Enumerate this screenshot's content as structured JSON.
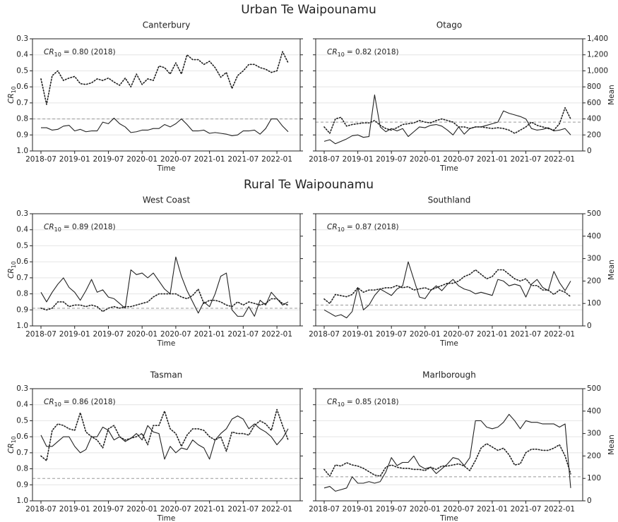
{
  "chart_data": {
    "type": "line",
    "x": [
      "2018-07",
      "2018-08",
      "2018-09",
      "2018-10",
      "2018-11",
      "2018-12",
      "2019-01",
      "2019-02",
      "2019-03",
      "2019-04",
      "2019-05",
      "2019-06",
      "2019-07",
      "2019-08",
      "2019-09",
      "2019-10",
      "2019-11",
      "2019-12",
      "2020-01",
      "2020-02",
      "2020-03",
      "2020-04",
      "2020-05",
      "2020-06",
      "2020-07",
      "2020-08",
      "2020-09",
      "2020-10",
      "2020-11",
      "2020-12",
      "2021-01",
      "2021-02",
      "2021-03",
      "2021-04",
      "2021-05",
      "2021-06",
      "2021-07",
      "2021-08",
      "2021-09",
      "2021-10",
      "2021-11",
      "2021-12",
      "2022-01",
      "2022-02",
      "2022-03"
    ],
    "xticks": [
      "2018-07",
      "2019-01",
      "2019-07",
      "2020-01",
      "2020-07",
      "2021-01",
      "2021-07",
      "2022-01"
    ],
    "xlabel": "Time",
    "ylabel": {
      "symbol": "CR",
      "subscript": "10"
    },
    "y2label": "Mean",
    "ylim": [
      1,
      0.3
    ],
    "yticks": [
      0.3,
      0.4,
      0.5,
      0.6,
      0.7,
      0.8,
      0.9,
      {
        "value": 1,
        "label": "1.0"
      }
    ],
    "grid": true,
    "rows": [
      {
        "title": "Urban Te Waipounamu",
        "y2lim": [
          0,
          1400
        ],
        "y2ticks": [
          0,
          200,
          400,
          600,
          800,
          {
            "value": 1000,
            "label": "1,000"
          },
          {
            "value": 1200,
            "label": "1,200"
          },
          {
            "value": 1400,
            "label": "1,400"
          }
        ],
        "panels": [
          {
            "title": "Canterbury",
            "reference": 0.8,
            "annotation": {
              "symbol": "CR",
              "subscript": "10",
              "text": "= 0.80 (2018)"
            },
            "series": [
              {
                "style": "solid",
                "axis": "y",
                "color": "#222222",
                "values": [
                  0.855,
                  0.855,
                  0.87,
                  0.865,
                  0.845,
                  0.84,
                  0.875,
                  0.865,
                  0.88,
                  0.875,
                  0.875,
                  0.82,
                  0.83,
                  0.795,
                  0.83,
                  0.85,
                  0.885,
                  0.88,
                  0.87,
                  0.87,
                  0.86,
                  0.86,
                  0.835,
                  0.85,
                  0.83,
                  0.8,
                  0.835,
                  0.875,
                  0.875,
                  0.87,
                  0.89,
                  0.885,
                  0.89,
                  0.895,
                  0.905,
                  0.9,
                  0.875,
                  0.875,
                  0.87,
                  0.895,
                  0.86,
                  0.8,
                  0.8,
                  0.845,
                  0.88
                ]
              },
              {
                "style": "dotted",
                "axis": "y2",
                "color": "#222222",
                "values": [
                  900,
                  580,
                  940,
                  1000,
                  880,
                  910,
                  930,
                  840,
                  830,
                  850,
                  900,
                  880,
                  910,
                  860,
                  820,
                  910,
                  800,
                  960,
                  830,
                  900,
                  880,
                  1060,
                  1040,
                  960,
                  1100,
                  960,
                  1200,
                  1140,
                  1140,
                  1080,
                  1120,
                  1040,
                  920,
                  980,
                  780,
                  940,
                  1000,
                  1080,
                  1080,
                  1040,
                  1020,
                  980,
                  1000,
                  1240,
                  1100
                ]
              }
            ]
          },
          {
            "title": "Otago",
            "reference": 0.82,
            "annotation": {
              "symbol": "CR",
              "subscript": "10",
              "text": "= 0.82 (2018)"
            },
            "series": [
              {
                "style": "solid",
                "axis": "y",
                "color": "#222222",
                "values": [
                  0.94,
                  0.93,
                  0.955,
                  0.94,
                  0.925,
                  0.905,
                  0.9,
                  0.915,
                  0.91,
                  0.65,
                  0.85,
                  0.88,
                  0.86,
                  0.875,
                  0.86,
                  0.91,
                  0.88,
                  0.85,
                  0.855,
                  0.84,
                  0.835,
                  0.845,
                  0.87,
                  0.9,
                  0.85,
                  0.895,
                  0.86,
                  0.85,
                  0.85,
                  0.84,
                  0.83,
                  0.82,
                  0.75,
                  0.765,
                  0.775,
                  0.785,
                  0.8,
                  0.86,
                  0.87,
                  0.865,
                  0.855,
                  0.875,
                  0.87,
                  0.86,
                  0.9
                ]
              },
              {
                "style": "dotted",
                "axis": "y2",
                "color": "#222222",
                "values": [
                  300,
                  220,
                  400,
                  420,
                  310,
                  330,
                  340,
                  350,
                  350,
                  380,
                  320,
                  280,
                  260,
                  290,
                  330,
                  340,
                  350,
                  380,
                  360,
                  350,
                  380,
                  400,
                  380,
                  360,
                  300,
                  300,
                  280,
                  300,
                  300,
                  290,
                  280,
                  290,
                  280,
                  260,
                  220,
                  260,
                  300,
                  360,
                  320,
                  300,
                  280,
                  260,
                  340,
                  540,
                  400
                ]
              }
            ]
          }
        ]
      },
      {
        "title": "Rural Te Waipounamu",
        "y2lim": [
          0,
          500
        ],
        "y2ticks": [
          0,
          100,
          200,
          300,
          400,
          500
        ],
        "panels": [
          {
            "title": "West Coast",
            "reference": 0.89,
            "annotation": {
              "symbol": "CR",
              "subscript": "10",
              "text": "= 0.89 (2018)"
            },
            "series": [
              {
                "style": "solid",
                "axis": "y",
                "color": "#222222",
                "values": [
                  0.79,
                  0.85,
                  0.79,
                  0.74,
                  0.7,
                  0.76,
                  0.79,
                  0.84,
                  0.78,
                  0.71,
                  0.79,
                  0.775,
                  0.82,
                  0.83,
                  0.86,
                  0.89,
                  0.65,
                  0.68,
                  0.67,
                  0.7,
                  0.67,
                  0.72,
                  0.77,
                  0.8,
                  0.57,
                  0.69,
                  0.78,
                  0.85,
                  0.92,
                  0.85,
                  0.88,
                  0.8,
                  0.69,
                  0.67,
                  0.9,
                  0.94,
                  0.94,
                  0.88,
                  0.94,
                  0.84,
                  0.87,
                  0.79,
                  0.83,
                  0.87,
                  0.85
                ]
              },
              {
                "style": "dotted",
                "axis": "y2",
                "color": "#222222",
                "values": [
                  79,
                  71,
                  79,
                  107,
                  107,
                  86,
                  93,
                  93,
                  86,
                  93,
                  86,
                  64,
                  79,
                  86,
                  79,
                  86,
                  86,
                  93,
                  100,
                  107,
                  129,
                  143,
                  143,
                  143,
                  143,
                  129,
                  121,
                  136,
                  164,
                  100,
                  114,
                  114,
                  107,
                  93,
                  86,
                  107,
                  93,
                  107,
                  100,
                  93,
                  100,
                  121,
                  121,
                  100,
                  93
                ]
              }
            ]
          },
          {
            "title": "Southland",
            "reference": 0.87,
            "annotation": {
              "symbol": "CR",
              "subscript": "10",
              "text": "= 0.87 (2018)"
            },
            "series": [
              {
                "style": "solid",
                "axis": "y",
                "color": "#222222",
                "values": [
                  0.9,
                  0.92,
                  0.94,
                  0.93,
                  0.95,
                  0.91,
                  0.76,
                  0.9,
                  0.87,
                  0.81,
                  0.77,
                  0.79,
                  0.81,
                  0.77,
                  0.75,
                  0.6,
                  0.71,
                  0.82,
                  0.83,
                  0.78,
                  0.75,
                  0.78,
                  0.74,
                  0.71,
                  0.75,
                  0.77,
                  0.78,
                  0.8,
                  0.79,
                  0.8,
                  0.81,
                  0.71,
                  0.72,
                  0.75,
                  0.74,
                  0.75,
                  0.82,
                  0.74,
                  0.71,
                  0.76,
                  0.78,
                  0.66,
                  0.73,
                  0.78,
                  0.72
                ]
              },
              {
                "style": "dotted",
                "axis": "y2",
                "color": "#222222",
                "values": [
                  120,
                  100,
                  140,
                  135,
                  130,
                  140,
                  170,
                  150,
                  160,
                  160,
                  165,
                  170,
                  170,
                  180,
                  170,
                  175,
                  160,
                  165,
                  170,
                  160,
                  170,
                  180,
                  190,
                  190,
                  200,
                  220,
                  230,
                  250,
                  230,
                  210,
                  220,
                  250,
                  250,
                  230,
                  210,
                  200,
                  210,
                  180,
                  180,
                  160,
                  160,
                  140,
                  160,
                  150,
                  130
                ]
              }
            ]
          }
        ]
      },
      {
        "y2lim": [
          0,
          500
        ],
        "y2ticks": [
          0,
          100,
          200,
          300,
          400,
          500
        ],
        "panels": [
          {
            "title": "Tasman",
            "reference": 0.86,
            "annotation": {
              "symbol": "CR",
              "subscript": "10",
              "text": "= 0.86 (2018)"
            },
            "series": [
              {
                "style": "solid",
                "axis": "y",
                "color": "#222222",
                "values": [
                  0.59,
                  0.66,
                  0.66,
                  0.63,
                  0.6,
                  0.6,
                  0.66,
                  0.7,
                  0.68,
                  0.6,
                  0.6,
                  0.54,
                  0.56,
                  0.62,
                  0.6,
                  0.63,
                  0.61,
                  0.58,
                  0.62,
                  0.53,
                  0.57,
                  0.58,
                  0.74,
                  0.66,
                  0.7,
                  0.67,
                  0.68,
                  0.62,
                  0.65,
                  0.67,
                  0.74,
                  0.62,
                  0.58,
                  0.55,
                  0.49,
                  0.47,
                  0.49,
                  0.55,
                  0.52,
                  0.55,
                  0.57,
                  0.6,
                  0.65,
                  0.61,
                  0.55
                ]
              },
              {
                "style": "dotted",
                "axis": "y2",
                "color": "#222222",
                "values": [
                  200,
                  179,
                  314,
                  343,
                  336,
                  321,
                  314,
                  393,
                  307,
                  286,
                  271,
                  236,
                  321,
                  336,
                  286,
                  271,
                  279,
                  286,
                  300,
                  250,
                  336,
                  336,
                  400,
                  321,
                  300,
                  243,
                  293,
                  321,
                  321,
                  314,
                  286,
                  271,
                  286,
                  221,
                  307,
                  300,
                  300,
                  293,
                  336,
                  357,
                  343,
                  314,
                  407,
                  336,
                  271
                ]
              }
            ]
          },
          {
            "title": "Marlborough",
            "reference": 0.85,
            "annotation": {
              "symbol": "CR",
              "subscript": "10",
              "text": "= 0.85 (2018)"
            },
            "series": [
              {
                "style": "solid",
                "axis": "y",
                "color": "#222222",
                "values": [
                  0.92,
                  0.91,
                  0.94,
                  0.93,
                  0.92,
                  0.85,
                  0.89,
                  0.89,
                  0.88,
                  0.89,
                  0.88,
                  0.82,
                  0.73,
                  0.78,
                  0.76,
                  0.76,
                  0.72,
                  0.78,
                  0.8,
                  0.79,
                  0.83,
                  0.8,
                  0.77,
                  0.73,
                  0.74,
                  0.78,
                  0.73,
                  0.5,
                  0.5,
                  0.54,
                  0.55,
                  0.54,
                  0.51,
                  0.46,
                  0.5,
                  0.55,
                  0.5,
                  0.51,
                  0.51,
                  0.52,
                  0.52,
                  0.52,
                  0.54,
                  0.52,
                  0.92
                ]
              },
              {
                "style": "dotted",
                "axis": "y2",
                "color": "#222222",
                "values": [
                  140,
                  110,
                  160,
                  155,
                  170,
                  160,
                  155,
                  145,
                  130,
                  115,
                  110,
                  150,
                  160,
                  150,
                  145,
                  145,
                  140,
                  140,
                  135,
                  150,
                  140,
                  155,
                  155,
                  160,
                  165,
                  155,
                  135,
                  180,
                  235,
                  255,
                  240,
                  225,
                  235,
                  205,
                  160,
                  165,
                  215,
                  230,
                  230,
                  225,
                  225,
                  235,
                  250,
                  200,
                  120
                ]
              }
            ]
          }
        ]
      }
    ]
  }
}
